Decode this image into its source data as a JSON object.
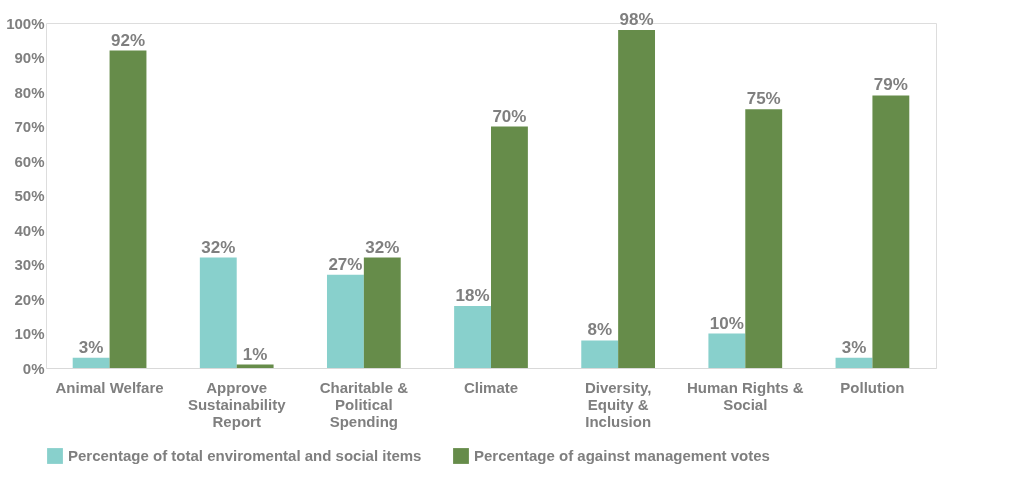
{
  "chart_data": {
    "type": "bar",
    "categories": [
      "Animal Welfare",
      "Approve Sustainability Report",
      "Charitable & Political Spending",
      "Climate",
      "Diversity, Equity & Inclusion",
      "Human Rights & Social",
      "Pollution"
    ],
    "series": [
      {
        "name": "Percentage of total enviromental and social items",
        "color": "#88d0cc",
        "values": [
          3,
          32,
          27,
          18,
          8,
          10,
          3
        ],
        "value_labels": [
          "3%",
          "32%",
          "27%",
          "18%",
          "8%",
          "10%",
          "3%"
        ]
      },
      {
        "name": "Percentage of against management votes",
        "color": "#668c4a",
        "values": [
          92,
          1,
          32,
          70,
          98,
          75,
          79
        ],
        "value_labels": [
          "92%",
          "1%",
          "32%",
          "70%",
          "98%",
          "75%",
          "79%"
        ]
      }
    ],
    "ylim": [
      0,
      100
    ],
    "yticks": [
      {
        "value": 0,
        "label": "0%"
      },
      {
        "value": 10,
        "label": "10%"
      },
      {
        "value": 20,
        "label": "20%"
      },
      {
        "value": 30,
        "label": "30%"
      },
      {
        "value": 40,
        "label": "40%"
      },
      {
        "value": 50,
        "label": "50%"
      },
      {
        "value": 60,
        "label": "60%"
      },
      {
        "value": 70,
        "label": "70%"
      },
      {
        "value": 80,
        "label": "80%"
      },
      {
        "value": 90,
        "label": "90%"
      },
      {
        "value": 100,
        "label": "100%"
      }
    ],
    "grid": false,
    "legend": "bottom"
  }
}
